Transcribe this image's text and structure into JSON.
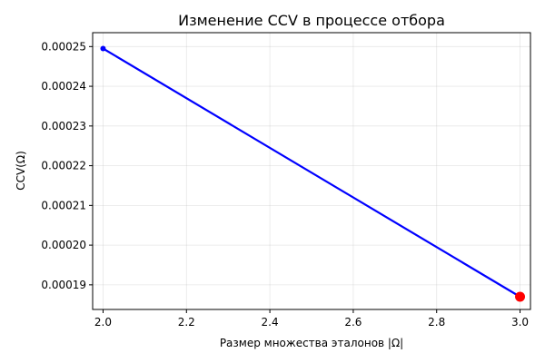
{
  "chart_data": {
    "type": "line",
    "title": "Изменение CCV в процессе отбора",
    "xlabel": "Размер множества эталонов |Ω|",
    "ylabel": "CCV(Ω)",
    "xlim": [
      1.975,
      3.025
    ],
    "ylim": [
      0.0001838,
      0.0002535
    ],
    "xticks": [
      2.0,
      2.2,
      2.4,
      2.6,
      2.8,
      3.0
    ],
    "xtick_labels": [
      "2.0",
      "2.2",
      "2.4",
      "2.6",
      "2.8",
      "3.0"
    ],
    "yticks": [
      0.00019,
      0.0002,
      0.00021,
      0.00022,
      0.00023,
      0.00024,
      0.00025
    ],
    "ytick_labels": [
      "0.00019",
      "0.00020",
      "0.00021",
      "0.00022",
      "0.00023",
      "0.00024",
      "0.00025"
    ],
    "grid": true,
    "series": [
      {
        "x": [
          2,
          3
        ],
        "y": [
          0.0002495,
          0.000187
        ],
        "color": "#0000ff",
        "marker": "circle-small"
      }
    ],
    "highlight": {
      "x": 3,
      "y": 0.000187,
      "color": "#ff0000",
      "marker": "circle-large"
    }
  }
}
